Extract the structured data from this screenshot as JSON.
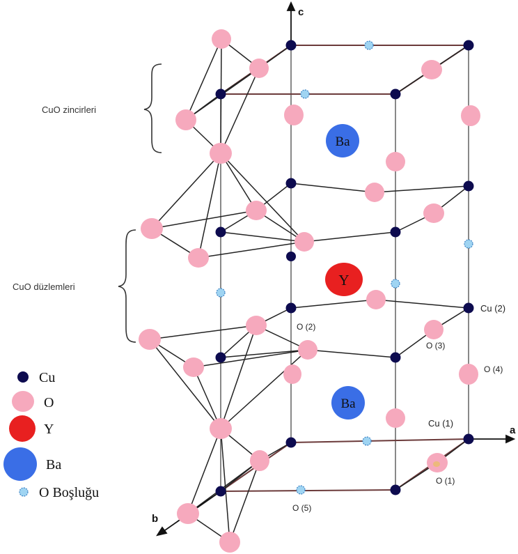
{
  "axes": {
    "a": "a",
    "b": "b",
    "c": "c"
  },
  "regions": {
    "chains": "CuO zincirleri",
    "planes": "CuO düzlemleri"
  },
  "atoms": {
    "barium": "Ba",
    "yttrium": "Y"
  },
  "site_labels": {
    "cu1": "Cu (1)",
    "cu2": "Cu (2)",
    "o1": "O (1)",
    "o2": "O (2)",
    "o3": "O (3)",
    "o4": "O (4)",
    "o5": "O (5)"
  },
  "legend": {
    "cu": "Cu",
    "o": "O",
    "y": "Y",
    "ba": "Ba",
    "vacancy": "O Boşluğu"
  },
  "colors": {
    "cu": "#0d0b4f",
    "o": "#f6a9bd",
    "y": "#e82020",
    "ba": "#3a6ee6",
    "vacancy": "#9fd4f2",
    "frame": "#6b3a3a",
    "bond": "#222222"
  }
}
